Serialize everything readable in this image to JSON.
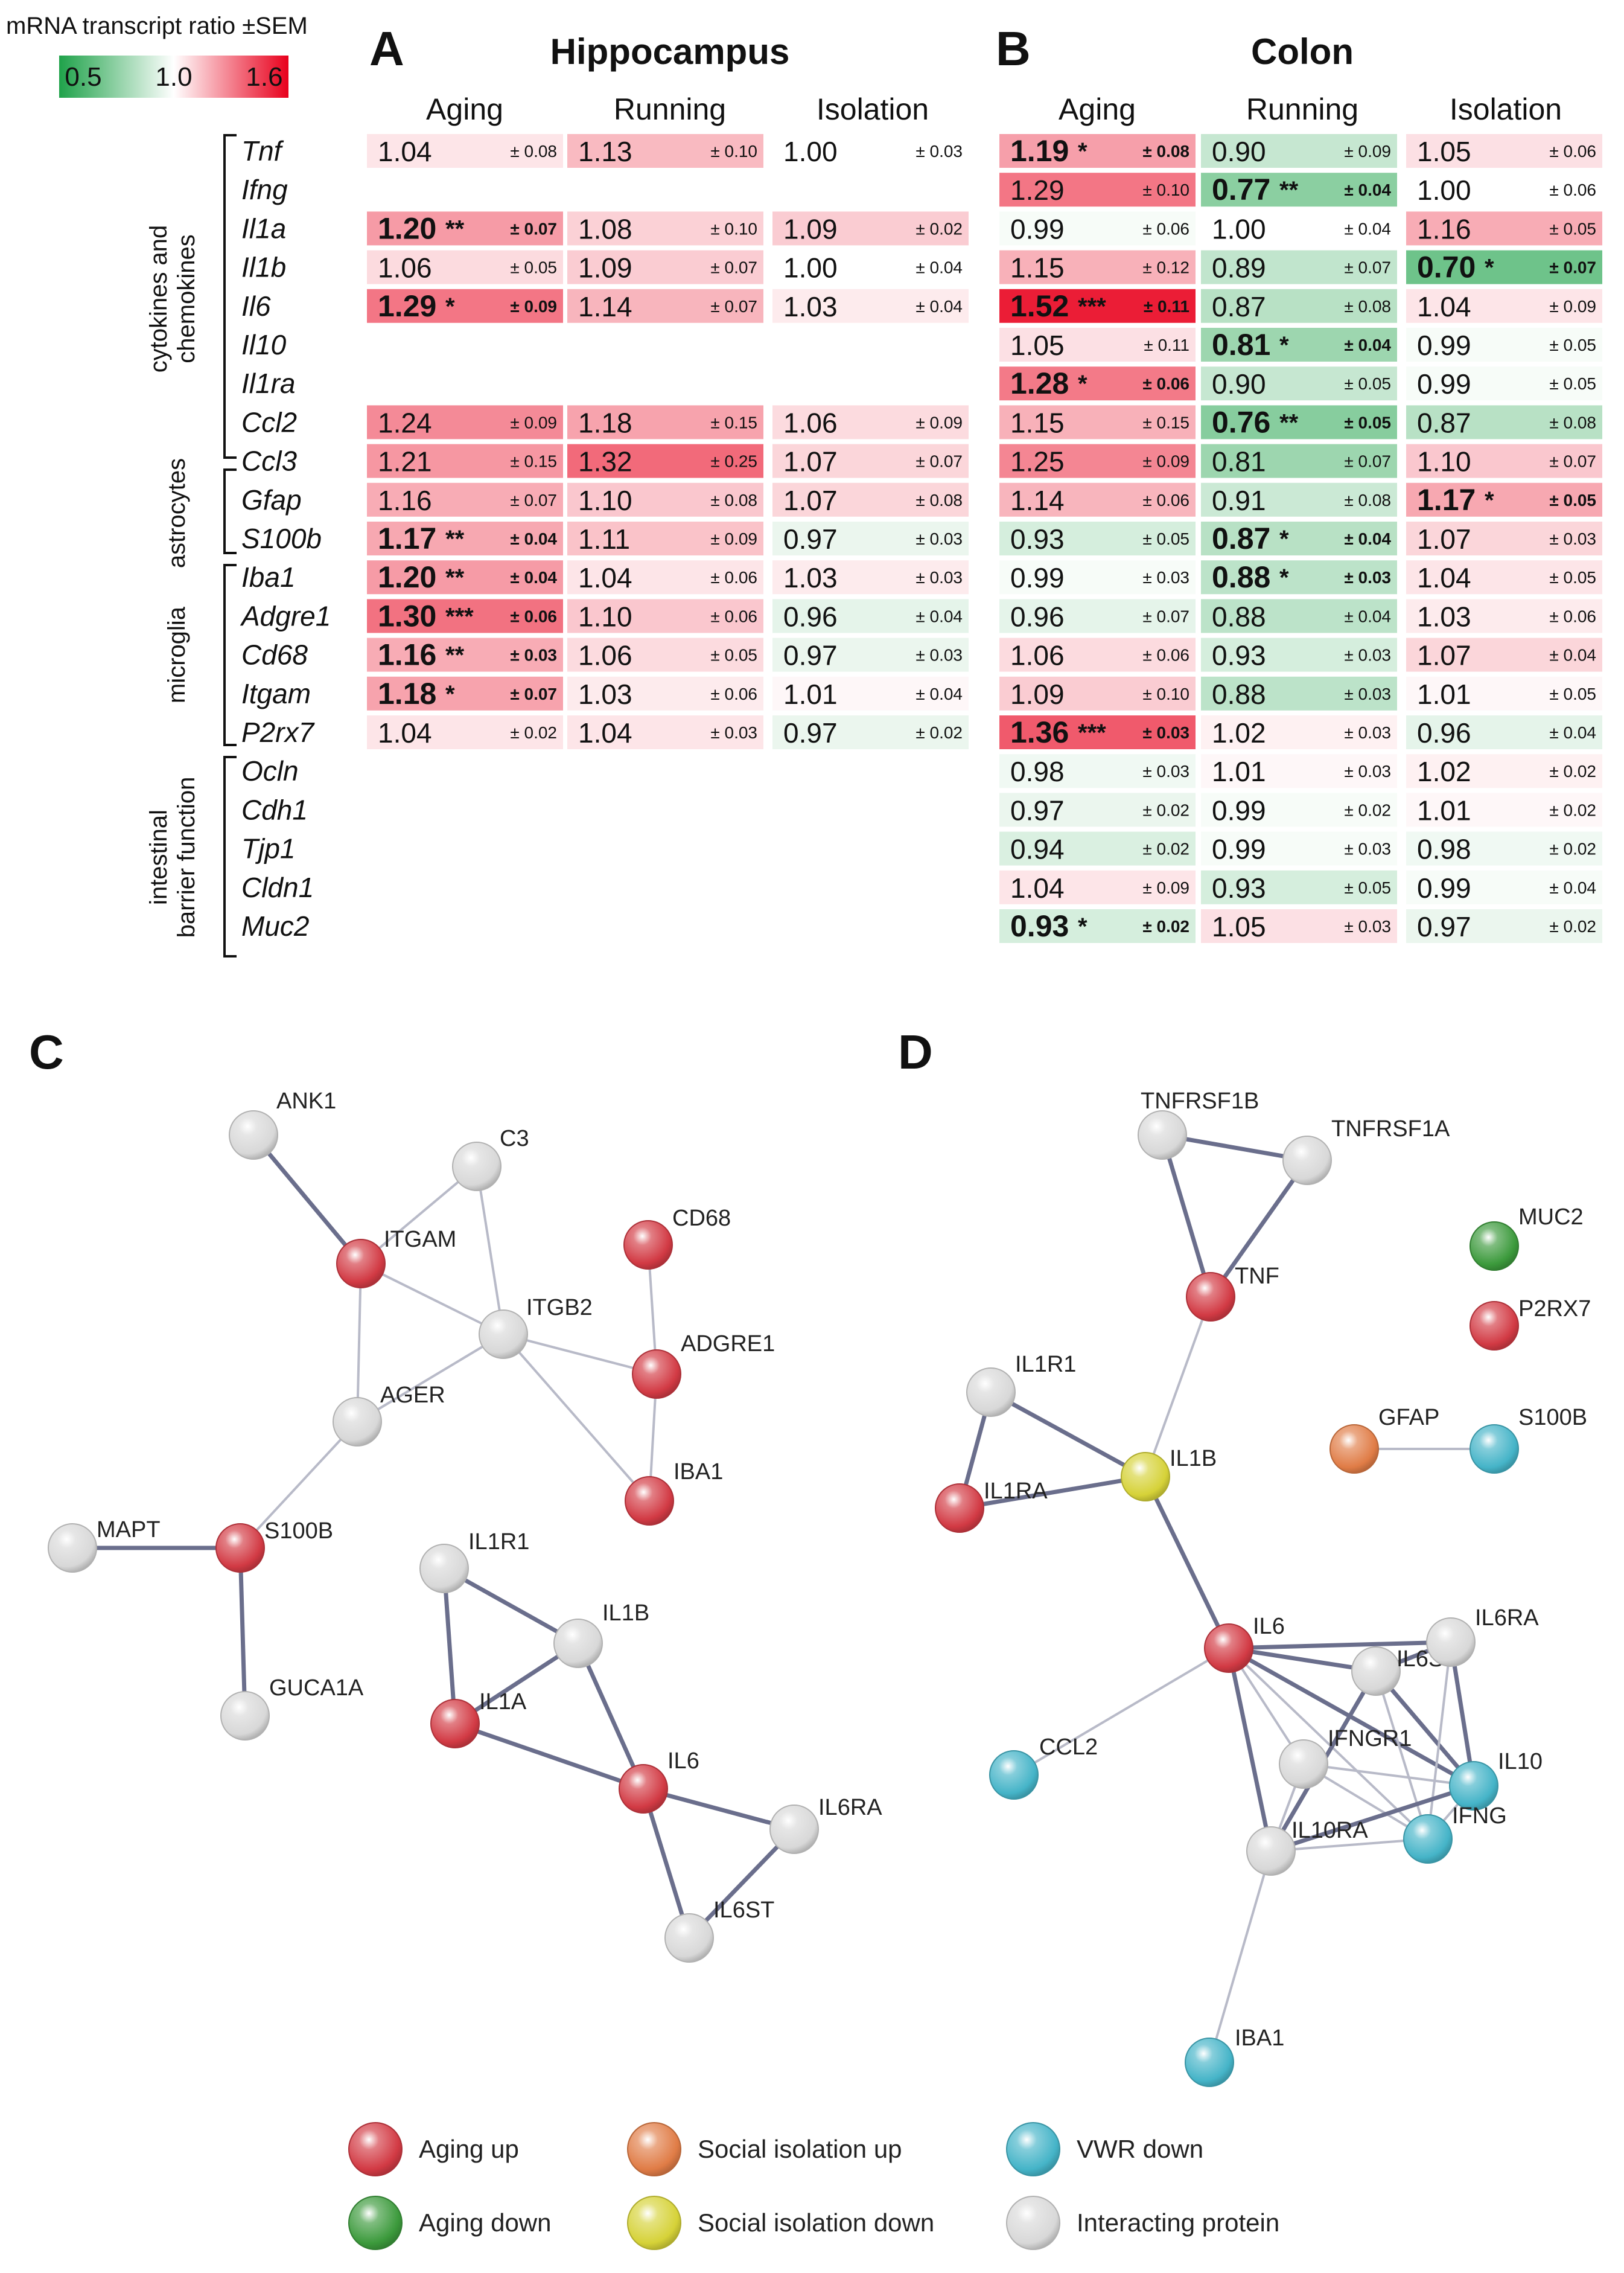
{
  "legend_scale": {
    "title": "mRNA transcript ratio ±SEM",
    "ticks": [
      "0.5",
      "1.0",
      "1.6"
    ],
    "colors": {
      "low": "#1fa24a",
      "mid": "#ffffff",
      "high": "#e8001c"
    }
  },
  "panels": [
    {
      "letter": "A",
      "title": "Hippocampus",
      "columns": [
        "Aging",
        "Running",
        "Isolation"
      ]
    },
    {
      "letter": "B",
      "title": "Colon",
      "columns": [
        "Aging",
        "Running",
        "Isolation"
      ]
    }
  ],
  "gene_groups": [
    {
      "label_lines": [
        "cytokines and",
        "chemokines"
      ],
      "genes": [
        "Tnf",
        "Ifng",
        "Il1a",
        "Il1b",
        "Il6",
        "Il10",
        "Il1ra",
        "Ccl2"
      ]
    },
    {
      "label_lines": [
        "astrocytes"
      ],
      "genes": [
        "Ccl3",
        "Gfap",
        "S100b"
      ]
    },
    {
      "label_lines": [
        "microglia"
      ],
      "genes": [
        "Iba1",
        "Adgre1",
        "Cd68",
        "Itgam",
        "P2rx7"
      ]
    },
    {
      "label_lines": [
        "intestinal",
        "barrier function"
      ],
      "genes": [
        "Ocln",
        "Cdh1",
        "Tjp1",
        "Cldn1",
        "Muc2"
      ]
    }
  ],
  "genes": [
    "Tnf",
    "Ifng",
    "Il1a",
    "Il1b",
    "Il6",
    "Il10",
    "Il1ra",
    "Ccl2",
    "Ccl3",
    "Gfap",
    "S100b",
    "Iba1",
    "Adgre1",
    "Cd68",
    "Itgam",
    "P2rx7",
    "Ocln",
    "Cdh1",
    "Tjp1",
    "Cldn1",
    "Muc2"
  ],
  "heatmap": {
    "hippocampus": [
      [
        [
          "1.04",
          "",
          "± 0.08"
        ],
        [
          "1.13",
          "",
          "± 0.10"
        ],
        [
          "1.00",
          "",
          "± 0.03"
        ]
      ],
      null,
      [
        [
          "1.20",
          "**",
          "± 0.07"
        ],
        [
          "1.08",
          "",
          "± 0.10"
        ],
        [
          "1.09",
          "",
          "± 0.02"
        ]
      ],
      [
        [
          "1.06",
          "",
          "± 0.05"
        ],
        [
          "1.09",
          "",
          "± 0.07"
        ],
        [
          "1.00",
          "",
          "± 0.04"
        ]
      ],
      [
        [
          "1.29",
          "*",
          "± 0.09"
        ],
        [
          "1.14",
          "",
          "± 0.07"
        ],
        [
          "1.03",
          "",
          "± 0.04"
        ]
      ],
      null,
      null,
      [
        [
          "1.24",
          "",
          "± 0.09"
        ],
        [
          "1.18",
          "",
          "± 0.15"
        ],
        [
          "1.06",
          "",
          "± 0.09"
        ]
      ],
      [
        [
          "1.21",
          "",
          "± 0.15"
        ],
        [
          "1.32",
          "",
          "± 0.25"
        ],
        [
          "1.07",
          "",
          "± 0.07"
        ]
      ],
      [
        [
          "1.16",
          "",
          "± 0.07"
        ],
        [
          "1.10",
          "",
          "± 0.08"
        ],
        [
          "1.07",
          "",
          "± 0.08"
        ]
      ],
      [
        [
          "1.17",
          "**",
          "± 0.04"
        ],
        [
          "1.11",
          "",
          "± 0.09"
        ],
        [
          "0.97",
          "",
          "± 0.03"
        ]
      ],
      [
        [
          "1.20",
          "**",
          "± 0.04"
        ],
        [
          "1.04",
          "",
          "± 0.06"
        ],
        [
          "1.03",
          "",
          "± 0.03"
        ]
      ],
      [
        [
          "1.30",
          "***",
          "± 0.06"
        ],
        [
          "1.10",
          "",
          "± 0.06"
        ],
        [
          "0.96",
          "",
          "± 0.04"
        ]
      ],
      [
        [
          "1.16",
          "**",
          "± 0.03"
        ],
        [
          "1.06",
          "",
          "± 0.05"
        ],
        [
          "0.97",
          "",
          "± 0.03"
        ]
      ],
      [
        [
          "1.18",
          "*",
          "± 0.07"
        ],
        [
          "1.03",
          "",
          "± 0.06"
        ],
        [
          "1.01",
          "",
          "± 0.04"
        ]
      ],
      [
        [
          "1.04",
          "",
          "± 0.02"
        ],
        [
          "1.04",
          "",
          "± 0.03"
        ],
        [
          "0.97",
          "",
          "± 0.02"
        ]
      ],
      null,
      null,
      null,
      null,
      null
    ],
    "colon": [
      [
        [
          "1.19",
          "*",
          "± 0.08"
        ],
        [
          "0.90",
          "",
          "± 0.09"
        ],
        [
          "1.05",
          "",
          "± 0.06"
        ]
      ],
      [
        [
          "1.29",
          "",
          "± 0.10"
        ],
        [
          "0.77",
          "**",
          "± 0.04"
        ],
        [
          "1.00",
          "",
          "± 0.06"
        ]
      ],
      [
        [
          "0.99",
          "",
          "± 0.06"
        ],
        [
          "1.00",
          "",
          "± 0.04"
        ],
        [
          "1.16",
          "",
          "± 0.05"
        ]
      ],
      [
        [
          "1.15",
          "",
          "± 0.12"
        ],
        [
          "0.89",
          "",
          "± 0.07"
        ],
        [
          "0.70",
          "*",
          "± 0.07"
        ]
      ],
      [
        [
          "1.52",
          "***",
          "± 0.11"
        ],
        [
          "0.87",
          "",
          "± 0.08"
        ],
        [
          "1.04",
          "",
          "± 0.09"
        ]
      ],
      [
        [
          "1.05",
          "",
          "± 0.11"
        ],
        [
          "0.81",
          "*",
          "± 0.04"
        ],
        [
          "0.99",
          "",
          "± 0.05"
        ]
      ],
      [
        [
          "1.28",
          "*",
          "± 0.06"
        ],
        [
          "0.90",
          "",
          "± 0.05"
        ],
        [
          "0.99",
          "",
          "± 0.05"
        ]
      ],
      [
        [
          "1.15",
          "",
          "± 0.15"
        ],
        [
          "0.76",
          "**",
          "± 0.05"
        ],
        [
          "0.87",
          "",
          "± 0.08"
        ]
      ],
      [
        [
          "1.25",
          "",
          "± 0.09"
        ],
        [
          "0.81",
          "",
          "± 0.07"
        ],
        [
          "1.10",
          "",
          "± 0.07"
        ]
      ],
      [
        [
          "1.14",
          "",
          "± 0.06"
        ],
        [
          "0.91",
          "",
          "± 0.08"
        ],
        [
          "1.17",
          "*",
          "± 0.05"
        ]
      ],
      [
        [
          "0.93",
          "",
          "± 0.05"
        ],
        [
          "0.87",
          "*",
          "± 0.04"
        ],
        [
          "1.07",
          "",
          "± 0.03"
        ]
      ],
      [
        [
          "0.99",
          "",
          "± 0.03"
        ],
        [
          "0.88",
          "*",
          "± 0.03"
        ],
        [
          "1.04",
          "",
          "± 0.05"
        ]
      ],
      [
        [
          "0.96",
          "",
          "± 0.07"
        ],
        [
          "0.88",
          "",
          "± 0.04"
        ],
        [
          "1.03",
          "",
          "± 0.06"
        ]
      ],
      [
        [
          "1.06",
          "",
          "± 0.06"
        ],
        [
          "0.93",
          "",
          "± 0.03"
        ],
        [
          "1.07",
          "",
          "± 0.04"
        ]
      ],
      [
        [
          "1.09",
          "",
          "± 0.10"
        ],
        [
          "0.88",
          "",
          "± 0.03"
        ],
        [
          "1.01",
          "",
          "± 0.05"
        ]
      ],
      [
        [
          "1.36",
          "***",
          "± 0.03"
        ],
        [
          "1.02",
          "",
          "± 0.03"
        ],
        [
          "0.96",
          "",
          "± 0.04"
        ]
      ],
      [
        [
          "0.98",
          "",
          "± 0.03"
        ],
        [
          "1.01",
          "",
          "± 0.03"
        ],
        [
          "1.02",
          "",
          "± 0.02"
        ]
      ],
      [
        [
          "0.97",
          "",
          "± 0.02"
        ],
        [
          "0.99",
          "",
          "± 0.02"
        ],
        [
          "1.01",
          "",
          "± 0.02"
        ]
      ],
      [
        [
          "0.94",
          "",
          "± 0.02"
        ],
        [
          "0.99",
          "",
          "± 0.03"
        ],
        [
          "0.98",
          "",
          "± 0.02"
        ]
      ],
      [
        [
          "1.04",
          "",
          "± 0.09"
        ],
        [
          "0.93",
          "",
          "± 0.05"
        ],
        [
          "0.99",
          "",
          "± 0.04"
        ]
      ],
      [
        [
          "0.93",
          "*",
          "± 0.02"
        ],
        [
          "1.05",
          "",
          "± 0.03"
        ],
        [
          "0.97",
          "",
          "± 0.02"
        ]
      ]
    ]
  },
  "networks": [
    {
      "letter": "C",
      "nodes": [
        {
          "id": "ANK1",
          "cat": "interacting"
        },
        {
          "id": "C3",
          "cat": "interacting"
        },
        {
          "id": "ITGAM",
          "cat": "aging_up"
        },
        {
          "id": "ITGB2",
          "cat": "interacting"
        },
        {
          "id": "CD68",
          "cat": "aging_up"
        },
        {
          "id": "ADGRE1",
          "cat": "aging_up"
        },
        {
          "id": "AGER",
          "cat": "interacting"
        },
        {
          "id": "IBA1",
          "cat": "aging_up"
        },
        {
          "id": "MAPT",
          "cat": "interacting"
        },
        {
          "id": "S100B",
          "cat": "aging_up"
        },
        {
          "id": "GUCA1A",
          "cat": "interacting"
        },
        {
          "id": "IL1R1",
          "cat": "interacting"
        },
        {
          "id": "IL1B",
          "cat": "interacting"
        },
        {
          "id": "IL1A",
          "cat": "aging_up"
        },
        {
          "id": "IL6",
          "cat": "aging_up"
        },
        {
          "id": "IL6RA",
          "cat": "interacting"
        },
        {
          "id": "IL6ST",
          "cat": "interacting"
        }
      ],
      "edges": [
        [
          "ANK1",
          "ITGAM"
        ],
        [
          "C3",
          "ITGAM"
        ],
        [
          "C3",
          "ITGB2"
        ],
        [
          "ITGAM",
          "ITGB2"
        ],
        [
          "ITGAM",
          "AGER"
        ],
        [
          "ITGB2",
          "AGER"
        ],
        [
          "ITGB2",
          "ADGRE1"
        ],
        [
          "ITGB2",
          "IBA1"
        ],
        [
          "CD68",
          "ADGRE1"
        ],
        [
          "ADGRE1",
          "IBA1"
        ],
        [
          "AGER",
          "S100B"
        ],
        [
          "MAPT",
          "S100B"
        ],
        [
          "S100B",
          "GUCA1A"
        ],
        [
          "IL1R1",
          "IL1B"
        ],
        [
          "IL1R1",
          "IL1A"
        ],
        [
          "IL1B",
          "IL1A"
        ],
        [
          "IL1B",
          "IL6"
        ],
        [
          "IL1A",
          "IL6"
        ],
        [
          "IL6",
          "IL6RA"
        ],
        [
          "IL6",
          "IL6ST"
        ],
        [
          "IL6RA",
          "IL6ST"
        ]
      ]
    },
    {
      "letter": "D",
      "nodes": [
        {
          "id": "TNFRSF1B",
          "cat": "interacting"
        },
        {
          "id": "TNFRSF1A",
          "cat": "interacting"
        },
        {
          "id": "TNF",
          "cat": "aging_up"
        },
        {
          "id": "MUC2",
          "cat": "aging_down"
        },
        {
          "id": "P2RX7",
          "cat": "aging_up"
        },
        {
          "id": "GFAP",
          "cat": "isolation_up"
        },
        {
          "id": "S100B",
          "cat": "vwr_down"
        },
        {
          "id": "IL1R1",
          "cat": "interacting"
        },
        {
          "id": "IL1RA",
          "cat": "aging_up"
        },
        {
          "id": "IL1B",
          "cat": "isolation_down"
        },
        {
          "id": "IL6",
          "cat": "aging_up"
        },
        {
          "id": "IL6ST",
          "cat": "interacting"
        },
        {
          "id": "IL6RA",
          "cat": "interacting"
        },
        {
          "id": "CCL2",
          "cat": "vwr_down"
        },
        {
          "id": "IFNGR1",
          "cat": "interacting"
        },
        {
          "id": "IL10",
          "cat": "vwr_down"
        },
        {
          "id": "IFNG",
          "cat": "vwr_down"
        },
        {
          "id": "IL10RA",
          "cat": "interacting"
        },
        {
          "id": "IBA1",
          "cat": "vwr_down"
        }
      ],
      "edges": [
        [
          "TNFRSF1B",
          "TNFRSF1A"
        ],
        [
          "TNFRSF1B",
          "TNF"
        ],
        [
          "TNFRSF1A",
          "TNF"
        ],
        [
          "TNF",
          "IL1B"
        ],
        [
          "GFAP",
          "S100B"
        ],
        [
          "IL1R1",
          "IL1RA"
        ],
        [
          "IL1R1",
          "IL1B"
        ],
        [
          "IL1RA",
          "IL1B"
        ],
        [
          "IL1B",
          "IL6"
        ],
        [
          "IL6",
          "IL6ST"
        ],
        [
          "IL6",
          "IL6RA"
        ],
        [
          "IL6",
          "CCL2"
        ],
        [
          "IL6",
          "IFNGR1"
        ],
        [
          "IL6",
          "IFNG"
        ],
        [
          "IL6",
          "IL10RA"
        ],
        [
          "IL6",
          "IL10"
        ],
        [
          "IL6ST",
          "IL6RA"
        ],
        [
          "IL6ST",
          "IL10"
        ],
        [
          "IL6ST",
          "IFNG"
        ],
        [
          "IL6ST",
          "IL10RA"
        ],
        [
          "IL6RA",
          "IL10"
        ],
        [
          "IL6RA",
          "IFNG"
        ],
        [
          "IFNGR1",
          "IFNG"
        ],
        [
          "IFNGR1",
          "IL10"
        ],
        [
          "IFNGR1",
          "IL10RA"
        ],
        [
          "IL10",
          "IFNG"
        ],
        [
          "IL10",
          "IL10RA"
        ],
        [
          "IFNG",
          "IL10RA"
        ],
        [
          "IL10RA",
          "IBA1"
        ]
      ]
    }
  ],
  "node_legend": [
    {
      "key": "aging_up",
      "label": "Aging up"
    },
    {
      "key": "isolation_up",
      "label": "Social isolation up"
    },
    {
      "key": "vwr_down",
      "label": "VWR down"
    },
    {
      "key": "aging_down",
      "label": "Aging down"
    },
    {
      "key": "isolation_down",
      "label": "Social isolation down"
    },
    {
      "key": "interacting",
      "label": "Interacting protein"
    }
  ],
  "node_colors": {
    "aging_up": "#d23a44",
    "aging_down": "#3c9a3c",
    "isolation_up": "#e07c46",
    "isolation_down": "#d6d238",
    "vwr_down": "#45b4c8",
    "interacting": "#d8d8d8"
  }
}
